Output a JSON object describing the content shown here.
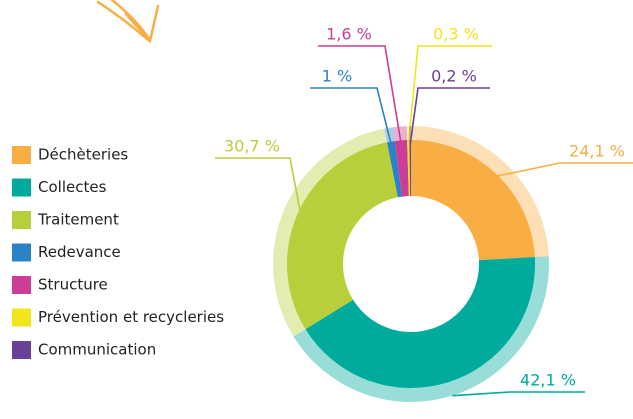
{
  "chart_data": {
    "type": "donut",
    "categories": [
      "Déchèteries",
      "Collectes",
      "Traitement",
      "Redevance",
      "Structure",
      "Prévention et recycleries",
      "Communication"
    ],
    "values": [
      24.1,
      42.1,
      30.7,
      1,
      1.6,
      0.3,
      0.2
    ],
    "value_labels": [
      "24,1 %",
      "42,1 %",
      "30,7 %",
      "1 %",
      "1,6 %",
      "0,3 %",
      "0,2 %"
    ],
    "colors": [
      "#f8ae43",
      "#00ab9e",
      "#b8cf3b",
      "#2b83c6",
      "#cb3d96",
      "#f2e51b",
      "#6a3f97"
    ]
  }
}
